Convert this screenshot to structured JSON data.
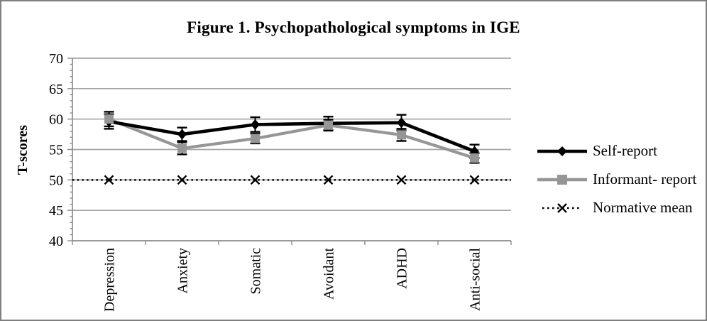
{
  "figure": {
    "border_color": "#7f7f7f",
    "background": "#ffffff"
  },
  "chart_data": {
    "type": "line",
    "title": "Figure 1. Psychopathological symptoms in IGE",
    "xlabel": "",
    "ylabel": "T-scores",
    "ylim": [
      40,
      70
    ],
    "ytick_step": 5,
    "minor_tick_step": 1,
    "yticks": [
      40,
      45,
      50,
      55,
      60,
      65,
      70
    ],
    "grid": true,
    "legend_position": "right",
    "gridline_color": "#a6a6a6",
    "axis_color": "#8c8c8c",
    "error_bar_color": "#000000",
    "categories": [
      "Depression",
      "Anxiety",
      "Somatic",
      "Avoidant",
      "ADHD",
      "Anti-social"
    ],
    "series": [
      {
        "name": "Self-report",
        "color": "#000000",
        "marker": "diamond",
        "line_style": "solid",
        "values": [
          59.6,
          57.5,
          59.1,
          59.3,
          59.4,
          54.7
        ],
        "errors": [
          1.2,
          1.1,
          1.2,
          1.1,
          1.3,
          1.1
        ],
        "extends_full_width": false
      },
      {
        "name": "Informant- report",
        "color": "#969696",
        "marker": "square",
        "line_style": "solid",
        "values": [
          60.0,
          55.2,
          56.8,
          59.0,
          57.4,
          53.6
        ],
        "errors": [
          1.2,
          1.0,
          0.8,
          0.9,
          1.0,
          0.8
        ],
        "extends_full_width": false
      },
      {
        "name": "Normative mean",
        "color": "#000000",
        "marker": "x",
        "line_style": "dotted",
        "values": [
          50,
          50,
          50,
          50,
          50,
          50
        ],
        "errors": [
          0,
          0,
          0,
          0,
          0,
          0
        ],
        "extends_full_width": true
      }
    ]
  }
}
